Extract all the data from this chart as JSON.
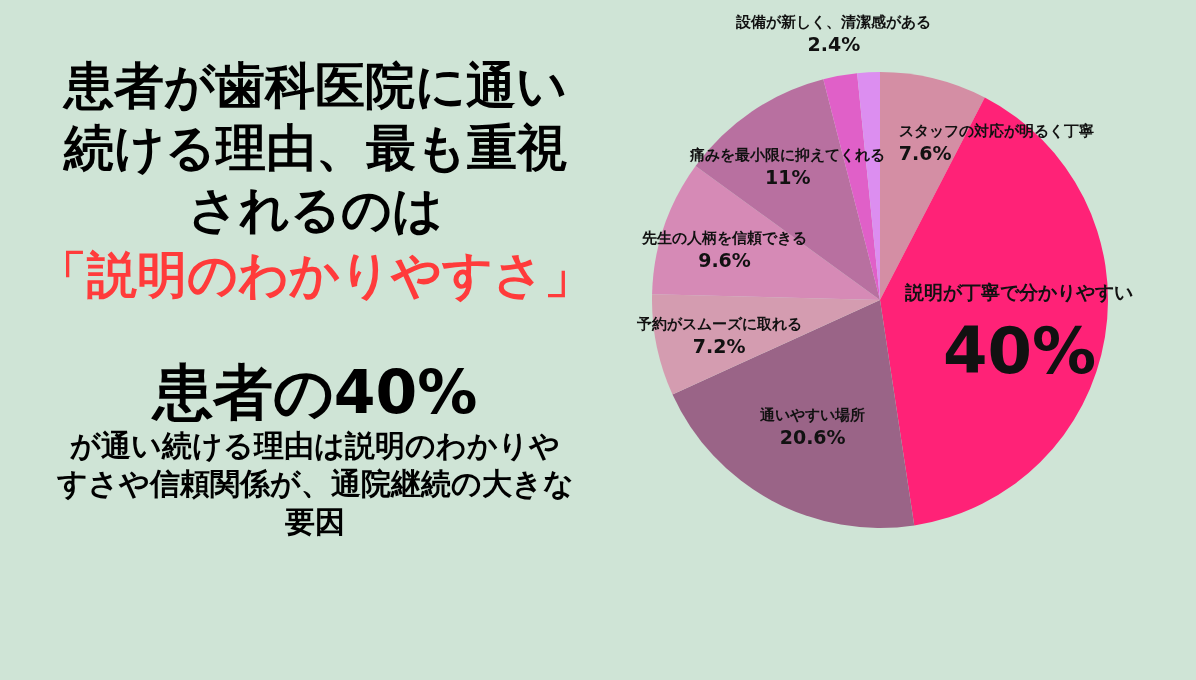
{
  "chart_data": {
    "type": "pie",
    "title": "患者が歯科医院に通い続ける理由、最も重視されるのは",
    "subtitle": "「説明のわかりやすさ」",
    "annotations": [
      "患者の40%",
      "が通い続ける理由は説明のわかりやすさや信頼関係が、通院継続の大きな要因"
    ],
    "categories": [
      "スタッフの対応が明るく丁寧",
      "説明が丁寧で分かりやすい",
      "通いやすい場所",
      "予約がスムーズに取れる",
      "先生の人柄を信頼できる",
      "痛みを最小限に抑えてくれる",
      "設備が新しく、清潔感がある",
      null
    ],
    "values": [
      7.6,
      40,
      20.6,
      7.2,
      9.6,
      11,
      2.4,
      1.6
    ],
    "value_labels": [
      "7.6%",
      "40%",
      "20.6%",
      "7.2%",
      "9.6%",
      "11%",
      "2.4%",
      null
    ],
    "colors": [
      "#d48ea4",
      "#ff2277",
      "#9a6487",
      "#d49cb0",
      "#d68ab6",
      "#b870a0",
      "#e060c8",
      "#dc8ef0"
    ]
  }
}
